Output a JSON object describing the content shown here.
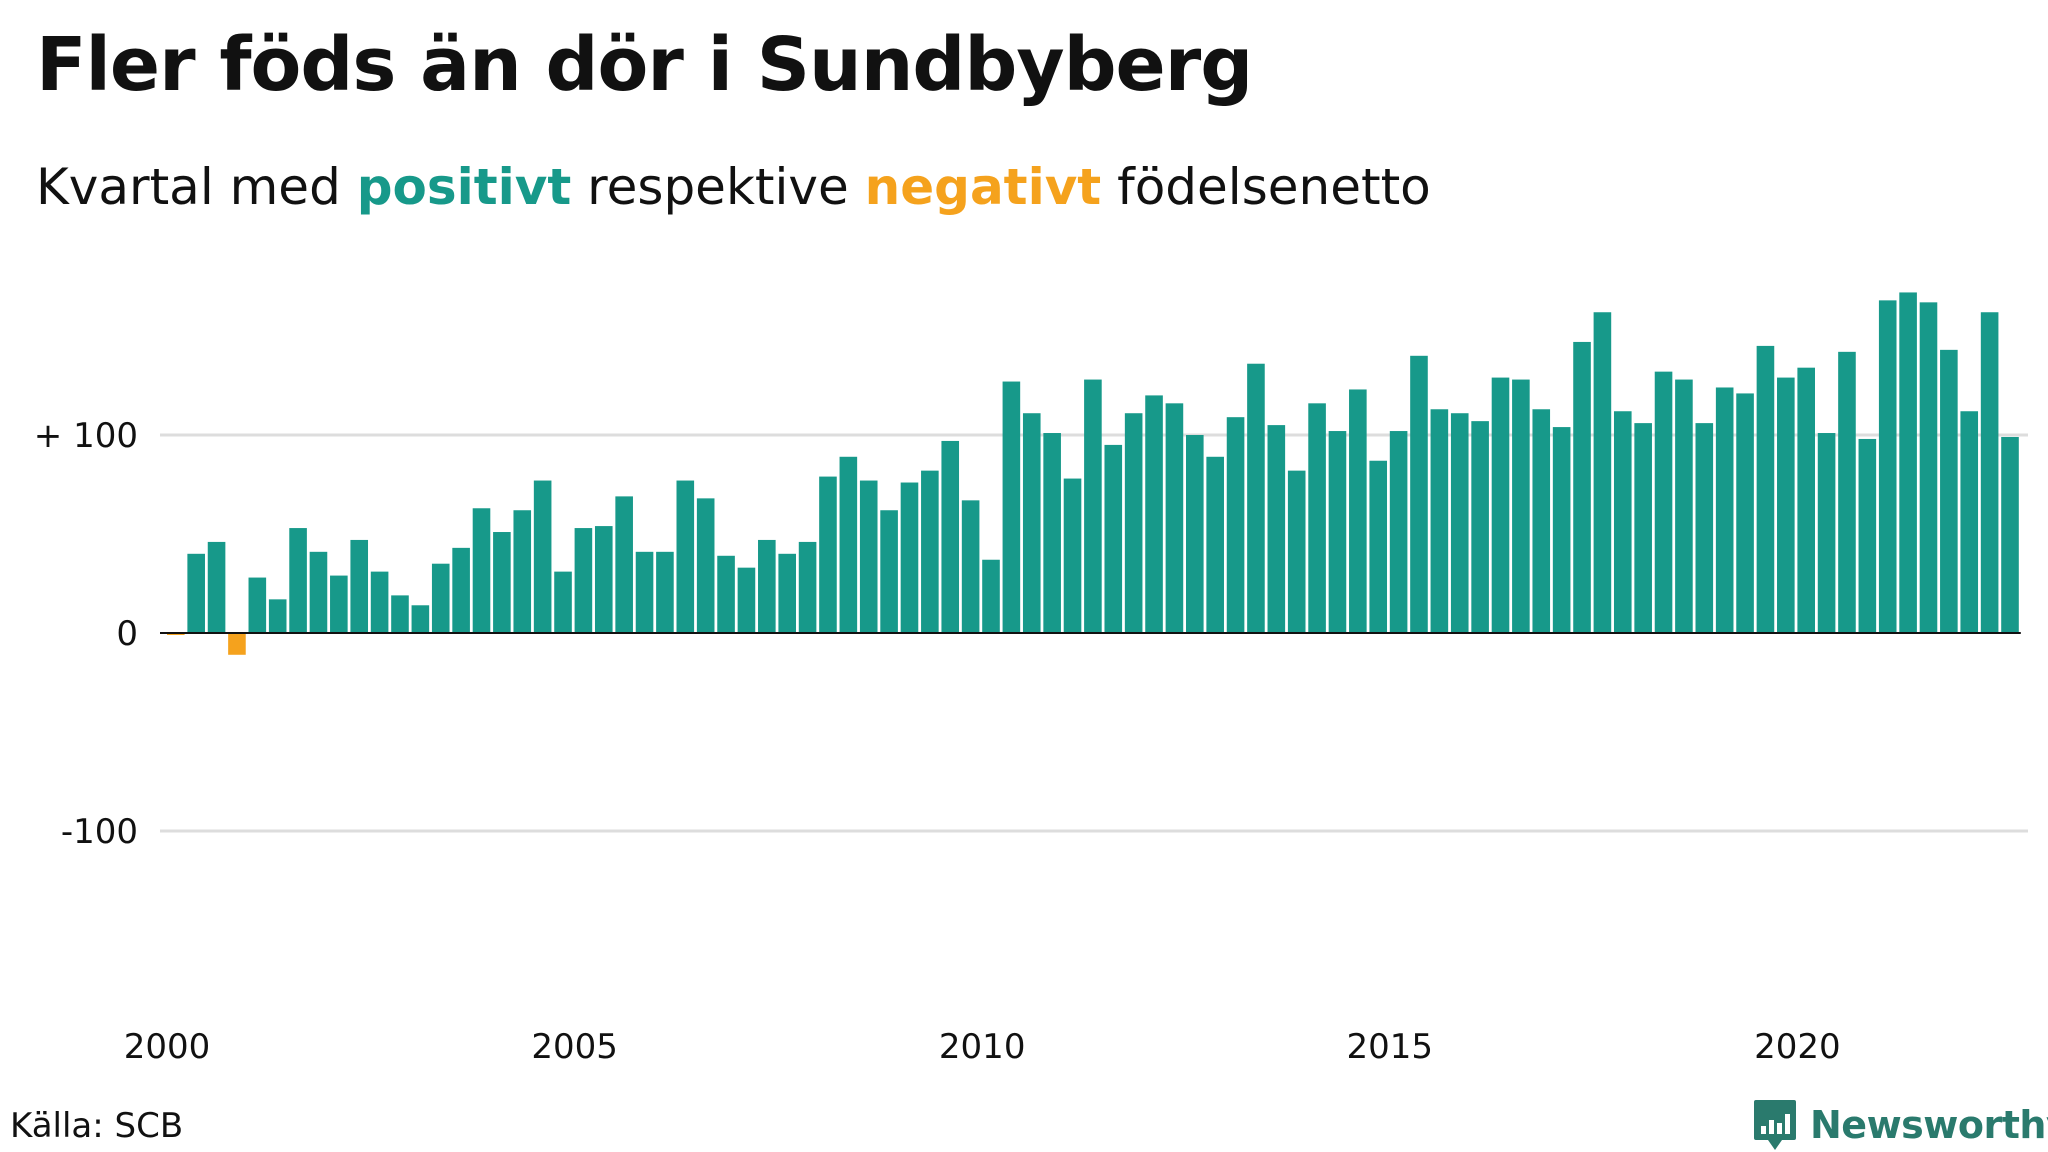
{
  "header": {
    "title": "Fler föds än dör i Sundbyberg",
    "subtitle_pre": "Kvartal med ",
    "subtitle_pos": "positivt",
    "subtitle_mid": " respektive ",
    "subtitle_neg": "negativt",
    "subtitle_post": " födelsenetto"
  },
  "footer": {
    "source": "Källa: SCB",
    "brand": "Newsworthy"
  },
  "colors": {
    "positive": "#17998a",
    "negative": "#f5a21d",
    "grid": "#dddddd",
    "axis": "#111111"
  },
  "chart_data": {
    "type": "bar",
    "x_axis": "quarter",
    "start": "2000-Q1",
    "values": [
      -1,
      40,
      46,
      -11,
      28,
      17,
      53,
      41,
      29,
      47,
      31,
      19,
      14,
      35,
      43,
      63,
      51,
      62,
      77,
      31,
      53,
      54,
      69,
      41,
      41,
      77,
      68,
      39,
      33,
      47,
      40,
      46,
      79,
      89,
      77,
      62,
      76,
      82,
      97,
      67,
      37,
      127,
      111,
      101,
      78,
      128,
      95,
      111,
      120,
      116,
      100,
      89,
      109,
      136,
      105,
      82,
      116,
      102,
      123,
      87,
      102,
      140,
      113,
      111,
      107,
      129,
      128,
      113,
      104,
      147,
      162,
      112,
      106,
      132,
      128,
      106,
      124,
      121,
      145,
      129,
      134,
      101,
      142,
      98,
      168,
      172,
      167,
      143,
      112,
      162,
      99
    ],
    "yticks": [
      {
        "value": 100,
        "label": "+ 100"
      },
      {
        "value": 0,
        "label": "0"
      },
      {
        "value": -100,
        "label": "-100"
      }
    ],
    "xticks": [
      {
        "year": 2000,
        "label": "2000"
      },
      {
        "year": 2005,
        "label": "2005"
      },
      {
        "year": 2010,
        "label": "2010"
      },
      {
        "year": 2015,
        "label": "2015"
      },
      {
        "year": 2020,
        "label": "2020"
      }
    ],
    "ylim": [
      -200,
      200
    ],
    "grid": true,
    "legend": "none"
  }
}
